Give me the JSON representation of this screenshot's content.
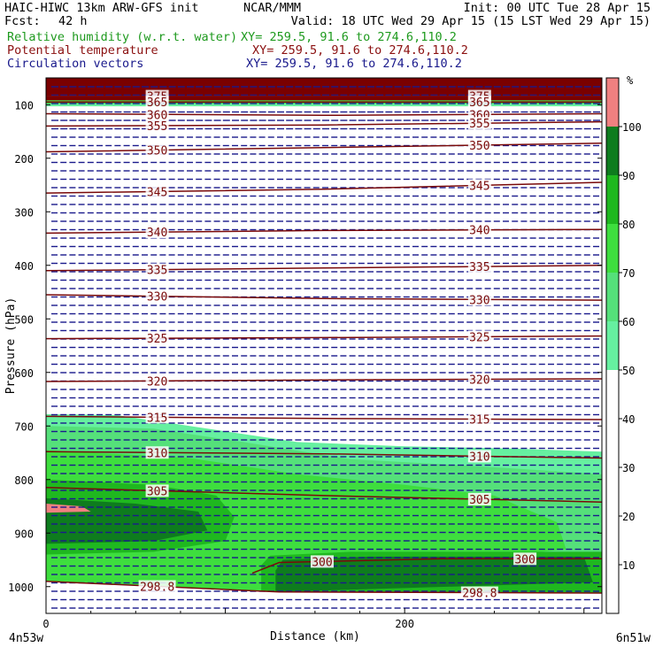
{
  "header": {
    "model": "HAIC-HIWC 13km ARW-GFS init",
    "org": "NCAR/MMM",
    "init": "Init: 00 UTC Tue 28 Apr 15",
    "fcst_label": "Fcst:",
    "fcst_value": "42 h",
    "valid": "Valid: 18 UTC Wed 29 Apr 15 (15 LST Wed 29 Apr 15)",
    "fields": [
      {
        "name": "Relative humidity (w.r.t. water)",
        "xy": "XY= 259.5, 91.6 to 274.6,110.2",
        "color": "#1e9a1e"
      },
      {
        "name": "Potential temperature",
        "xy": "XY= 259.5, 91.6 to 274.6,110.2",
        "color": "#8b1010"
      },
      {
        "name": "Circulation vectors",
        "xy": "XY= 259.5, 91.6 to 274.6,110.2",
        "color": "#1a1a8c"
      }
    ]
  },
  "chart_data": {
    "type": "cross-section",
    "xlabel": "Distance (km)",
    "ylabel": "Pressure (hPa)",
    "x_ticks": [
      0,
      200
    ],
    "xlim": [
      0,
      310
    ],
    "y_ticks": [
      100,
      200,
      300,
      400,
      500,
      600,
      700,
      800,
      900,
      1000
    ],
    "ylim": [
      50,
      1050
    ],
    "left_endpoint": "4n53w",
    "right_endpoint": "6n51w",
    "colorbar": {
      "unit": "%",
      "ticks": [
        10,
        20,
        30,
        40,
        50,
        60,
        70,
        80,
        90,
        100
      ],
      "bands": [
        {
          "from": 50,
          "to": 60,
          "color": "#66f0a0"
        },
        {
          "from": 60,
          "to": 70,
          "color": "#55e07a"
        },
        {
          "from": 70,
          "to": 80,
          "color": "#3ede3e"
        },
        {
          "from": 80,
          "to": 90,
          "color": "#1fb81f"
        },
        {
          "from": 90,
          "to": 100,
          "color": "#0e7c1e"
        },
        {
          "from": 100,
          "to": 110,
          "color": "#f08080"
        }
      ]
    },
    "theta_contours": [
      {
        "label": "375",
        "values": [
          [
            0,
            84
          ],
          [
            310,
            84
          ]
        ]
      },
      {
        "label": "365",
        "values": [
          [
            0,
            95
          ],
          [
            310,
            95
          ]
        ]
      },
      {
        "label": "360",
        "values": [
          [
            0,
            117
          ],
          [
            155,
            120
          ],
          [
            310,
            117
          ]
        ]
      },
      {
        "label": "355",
        "values": [
          [
            0,
            140
          ],
          [
            155,
            138
          ],
          [
            310,
            132
          ]
        ]
      },
      {
        "label": "350",
        "values": [
          [
            0,
            188
          ],
          [
            155,
            180
          ],
          [
            310,
            172
          ]
        ]
      },
      {
        "label": "345",
        "values": [
          [
            0,
            265
          ],
          [
            155,
            258
          ],
          [
            310,
            245
          ]
        ]
      },
      {
        "label": "340",
        "values": [
          [
            0,
            340
          ],
          [
            155,
            335
          ],
          [
            310,
            333
          ]
        ]
      },
      {
        "label": "335",
        "values": [
          [
            0,
            410
          ],
          [
            155,
            405
          ],
          [
            310,
            400
          ]
        ]
      },
      {
        "label": "330",
        "values": [
          [
            0,
            455
          ],
          [
            155,
            462
          ],
          [
            310,
            465
          ]
        ]
      },
      {
        "label": "325",
        "values": [
          [
            0,
            537
          ],
          [
            155,
            535
          ],
          [
            310,
            532
          ]
        ]
      },
      {
        "label": "320",
        "values": [
          [
            0,
            617
          ],
          [
            155,
            614
          ],
          [
            310,
            612
          ]
        ]
      },
      {
        "label": "315",
        "values": [
          [
            0,
            682
          ],
          [
            155,
            686
          ],
          [
            310,
            688
          ]
        ]
      },
      {
        "label": "310",
        "values": [
          [
            0,
            748
          ],
          [
            155,
            752
          ],
          [
            310,
            760
          ]
        ]
      },
      {
        "label": "305",
        "values": [
          [
            0,
            815
          ],
          [
            155,
            830
          ],
          [
            310,
            842
          ]
        ]
      },
      {
        "label": "300",
        "values": [
          [
            115,
            975
          ],
          [
            130,
            955
          ],
          [
            220,
            948
          ],
          [
            310,
            948
          ]
        ]
      },
      {
        "label": "298.8",
        "values": [
          [
            0,
            990
          ],
          [
            130,
            1010
          ],
          [
            310,
            1012
          ]
        ]
      }
    ]
  }
}
